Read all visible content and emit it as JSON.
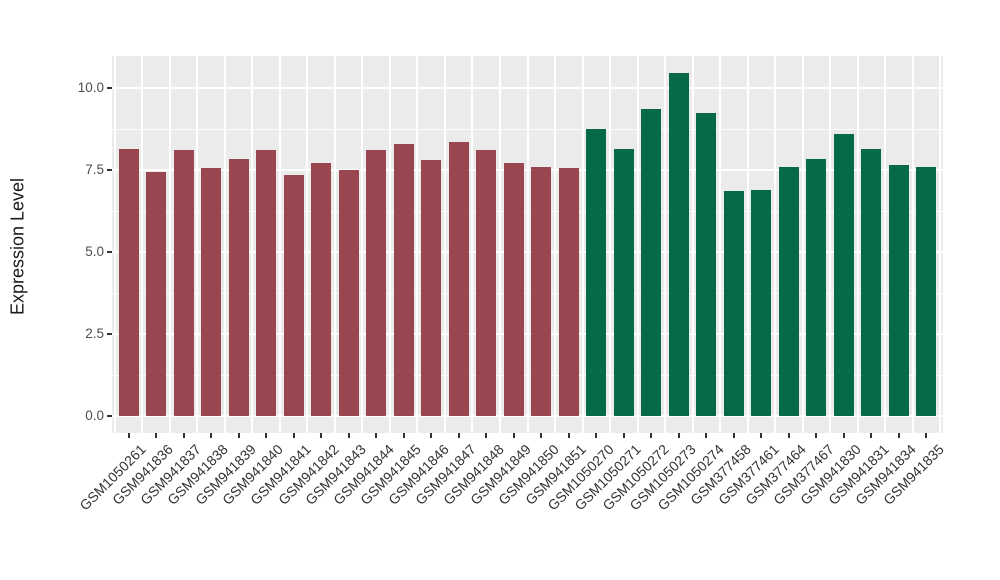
{
  "chart_data": {
    "type": "bar",
    "title": "",
    "xlabel": "",
    "ylabel": "Expression Level",
    "ylim": [
      0,
      11
    ],
    "grid": "on",
    "legend": "none",
    "panel_bg": "#EBEBEB",
    "grid_color": "#FFFFFF",
    "yticks": {
      "values": [
        0,
        2.5,
        5,
        7.5,
        10
      ],
      "labels": [
        "0.0",
        "2.5",
        "5.0",
        "7.5",
        "10.0"
      ]
    },
    "yminor": [
      1.25,
      3.75,
      6.25,
      8.75
    ],
    "categories": [
      "GSM1050261",
      "GSM941836",
      "GSM941837",
      "GSM941838",
      "GSM941839",
      "GSM941840",
      "GSM941841",
      "GSM941842",
      "GSM941843",
      "GSM941844",
      "GSM941845",
      "GSM941846",
      "GSM941847",
      "GSM941848",
      "GSM941849",
      "GSM941850",
      "GSM941851",
      "GSM1050270",
      "GSM1050271",
      "GSM1050272",
      "GSM1050273",
      "GSM1050274",
      "GSM377458",
      "GSM377461",
      "GSM377464",
      "GSM377467",
      "GSM941830",
      "GSM941831",
      "GSM941834",
      "GSM941835"
    ],
    "values": [
      8.15,
      7.45,
      8.1,
      7.55,
      7.85,
      8.1,
      7.35,
      7.7,
      7.5,
      8.1,
      8.3,
      7.8,
      8.35,
      8.1,
      7.7,
      7.6,
      7.55,
      8.75,
      8.15,
      9.35,
      10.45,
      9.25,
      6.85,
      6.9,
      7.6,
      7.85,
      8.6,
      8.15,
      7.65,
      7.6
    ],
    "bar_groups": [
      "group1",
      "group1",
      "group1",
      "group1",
      "group1",
      "group1",
      "group1",
      "group1",
      "group1",
      "group1",
      "group1",
      "group1",
      "group1",
      "group1",
      "group1",
      "group1",
      "group1",
      "group2",
      "group2",
      "group2",
      "group2",
      "group2",
      "group2",
      "group2",
      "group2",
      "group2",
      "group2",
      "group2",
      "group2",
      "group2"
    ],
    "group_colors": {
      "group1": "#9A4651",
      "group2": "#05694A"
    }
  }
}
